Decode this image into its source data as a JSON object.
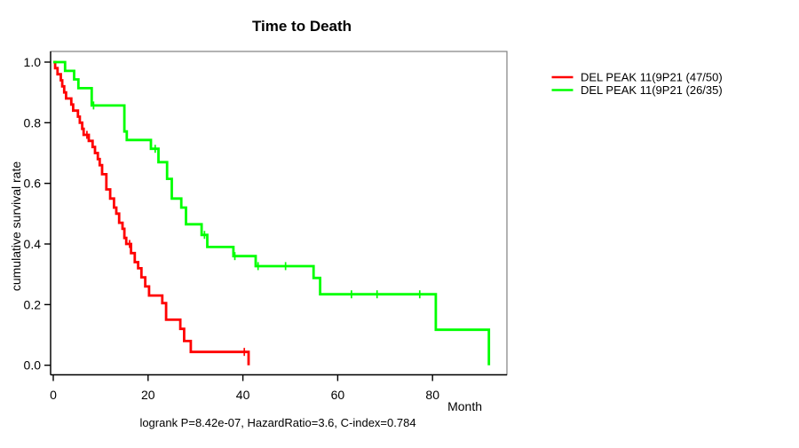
{
  "title": "Time to Death",
  "axes": {
    "x": {
      "label": "Month",
      "tick_labels": [
        "0",
        "20",
        "40",
        "60",
        "80"
      ]
    },
    "y": {
      "label": "cumulative survival rate",
      "tick_labels": [
        "0.0",
        "0.2",
        "0.4",
        "0.6",
        "0.8",
        "1.0"
      ]
    }
  },
  "footer": "logrank P=8.42e-07, HazardRatio=3.6, C-index=0.784",
  "chart_data": {
    "type": "line",
    "subtype": "kaplan-meier-step",
    "title": "Time to Death",
    "xlabel": "Month",
    "ylabel": "cumulative survival rate",
    "xlim": [
      0,
      96
    ],
    "ylim": [
      0,
      1
    ],
    "x_ticks": [
      0,
      20,
      40,
      60,
      80
    ],
    "y_ticks": [
      0.0,
      0.2,
      0.4,
      0.6,
      0.8,
      1.0
    ],
    "grid": false,
    "legend_position": "top-right-outside",
    "annotation": "logrank P=8.42e-07, HazardRatio=3.6, C-index=0.784",
    "series": [
      {
        "name": "DEL PEAK 11(9P21 (47/50)",
        "color": "#ff0000",
        "events_ratio": "47/50",
        "steps": [
          [
            0,
            1.0
          ],
          [
            0.4,
            0.98
          ],
          [
            0.9,
            0.96
          ],
          [
            1.6,
            0.94
          ],
          [
            1.9,
            0.92
          ],
          [
            2.3,
            0.9
          ],
          [
            2.7,
            0.88
          ],
          [
            3.8,
            0.86
          ],
          [
            4.2,
            0.84
          ],
          [
            5.2,
            0.82
          ],
          [
            5.6,
            0.8
          ],
          [
            6.1,
            0.78
          ],
          [
            6.4,
            0.76
          ],
          [
            7.5,
            0.74
          ],
          [
            8.3,
            0.72
          ],
          [
            8.8,
            0.7
          ],
          [
            9.4,
            0.68
          ],
          [
            9.8,
            0.66
          ],
          [
            10.3,
            0.63
          ],
          [
            11.2,
            0.58
          ],
          [
            12.0,
            0.55
          ],
          [
            12.8,
            0.52
          ],
          [
            13.3,
            0.5
          ],
          [
            13.9,
            0.47
          ],
          [
            14.6,
            0.45
          ],
          [
            15.0,
            0.42
          ],
          [
            15.4,
            0.4
          ],
          [
            16.4,
            0.37
          ],
          [
            17.2,
            0.34
          ],
          [
            17.9,
            0.32
          ],
          [
            18.6,
            0.29
          ],
          [
            19.4,
            0.26
          ],
          [
            20.2,
            0.23
          ],
          [
            23.0,
            0.205
          ],
          [
            23.8,
            0.15
          ],
          [
            26.8,
            0.12
          ],
          [
            27.6,
            0.08
          ],
          [
            29.0,
            0.044
          ],
          [
            41.2,
            0.0
          ]
        ],
        "censor_marks": [
          [
            7.1,
            0.76
          ],
          [
            16.1,
            0.4
          ],
          [
            40.3,
            0.044
          ]
        ]
      },
      {
        "name": "DEL PEAK 11(9P21 (26/35)",
        "color": "#00ff00",
        "events_ratio": "26/35",
        "steps": [
          [
            0,
            1.0
          ],
          [
            2.5,
            0.971
          ],
          [
            4.4,
            0.943
          ],
          [
            5.3,
            0.914
          ],
          [
            8.1,
            0.857
          ],
          [
            15.0,
            0.771
          ],
          [
            15.5,
            0.743
          ],
          [
            20.6,
            0.714
          ],
          [
            22.2,
            0.67
          ],
          [
            24.0,
            0.615
          ],
          [
            25.0,
            0.55
          ],
          [
            27.0,
            0.52
          ],
          [
            28.0,
            0.465
          ],
          [
            31.3,
            0.43
          ],
          [
            32.5,
            0.39
          ],
          [
            38.0,
            0.36
          ],
          [
            42.7,
            0.327
          ],
          [
            54.9,
            0.288
          ],
          [
            56.3,
            0.234
          ],
          [
            80.7,
            0.117
          ],
          [
            91.9,
            0.0
          ]
        ],
        "censor_marks": [
          [
            8.5,
            0.857
          ],
          [
            21.5,
            0.714
          ],
          [
            31.9,
            0.43
          ],
          [
            38.3,
            0.36
          ],
          [
            43.2,
            0.327
          ],
          [
            49.0,
            0.327
          ],
          [
            62.9,
            0.234
          ],
          [
            68.3,
            0.234
          ],
          [
            77.3,
            0.234
          ]
        ]
      }
    ]
  }
}
